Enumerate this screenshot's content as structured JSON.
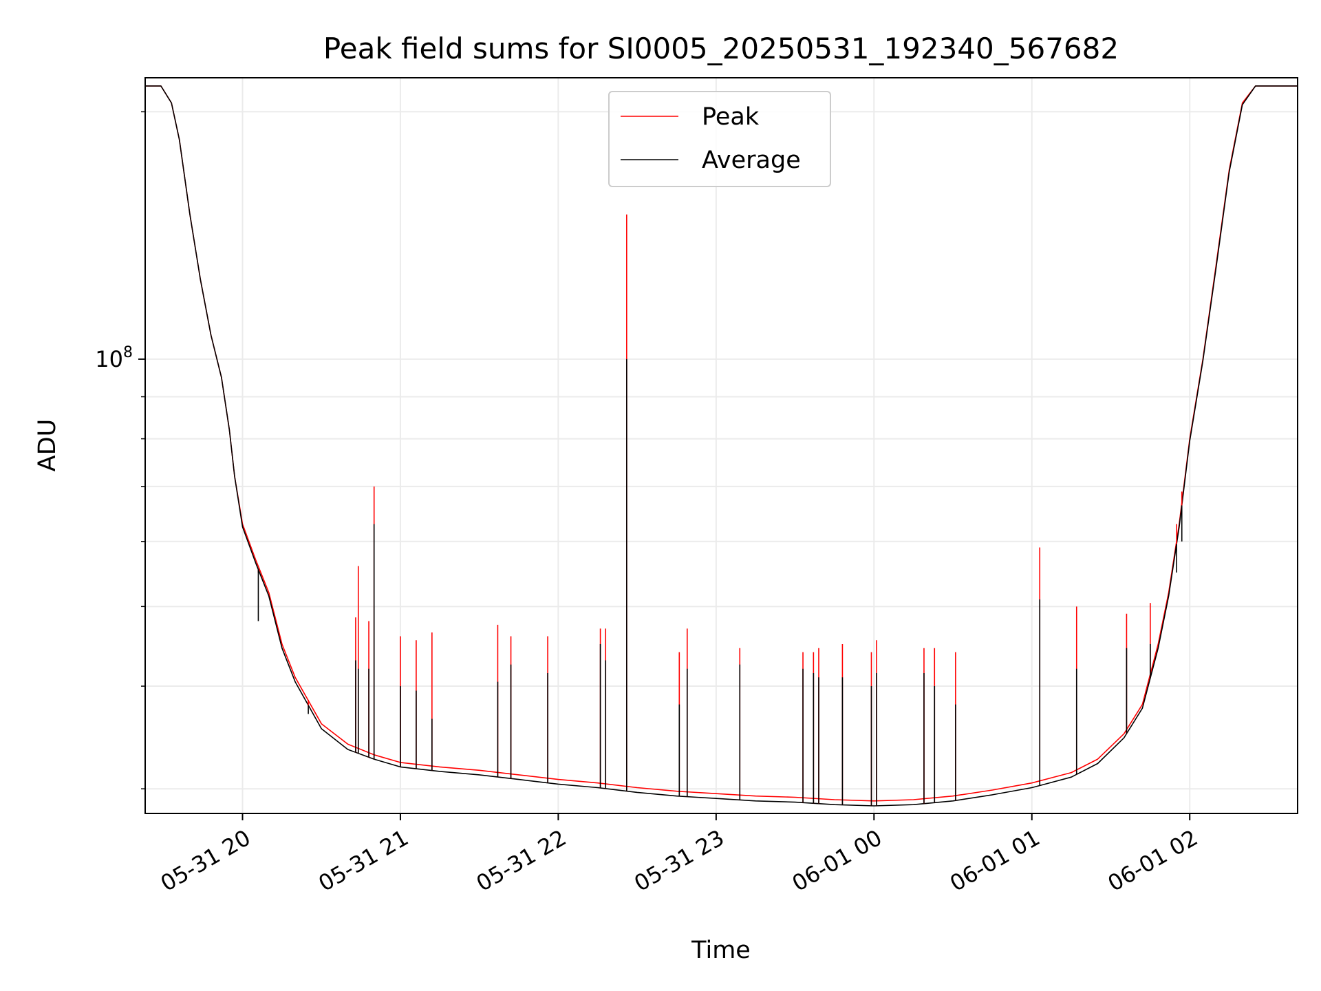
{
  "chart_data": {
    "type": "line",
    "title": "Peak field sums for SI0005_20250531_192340_567682",
    "xlabel": "Time",
    "ylabel": "ADU",
    "yscale": "log",
    "grid": true,
    "legend": {
      "placement": "upper center"
    },
    "x_tick_labels": [
      "05-31 20",
      "05-31 21",
      "05-31 22",
      "05-31 23",
      "06-01 00",
      "06-01 01",
      "06-01 02"
    ],
    "x_tick_times": [
      "2025-05-31T20:00",
      "2025-05-31T21:00",
      "2025-05-31T22:00",
      "2025-05-31T23:00",
      "2025-06-01T00:00",
      "2025-06-01T01:00",
      "2025-06-01T02:00"
    ],
    "xlim": [
      "2025-05-31T19:23",
      "2025-06-01T02:41"
    ],
    "y_major_ticks": [
      {
        "value": 100000000,
        "base": "10",
        "exp": "8"
      }
    ],
    "ylim": [
      28000000,
      220000000
    ],
    "series": [
      {
        "name": "Peak",
        "color": "#ff0000",
        "points": [
          [
            "2025-05-31T19:23",
            215000000
          ],
          [
            "2025-05-31T19:29",
            215000000
          ],
          [
            "2025-05-31T19:33",
            205000000
          ],
          [
            "2025-05-31T19:36",
            185000000
          ],
          [
            "2025-05-31T19:40",
            150000000
          ],
          [
            "2025-05-31T19:44",
            125000000
          ],
          [
            "2025-05-31T19:48",
            107000000
          ],
          [
            "2025-05-31T19:52",
            95000000
          ],
          [
            "2025-05-31T19:55",
            82000000
          ],
          [
            "2025-05-31T19:57",
            72000000
          ],
          [
            "2025-05-31T20:00",
            63000000
          ],
          [
            "2025-05-31T20:05",
            57000000
          ],
          [
            "2025-05-31T20:10",
            52000000
          ],
          [
            "2025-05-31T20:15",
            45000000
          ],
          [
            "2025-05-31T20:20",
            41000000
          ],
          [
            "2025-05-31T20:30",
            36000000
          ],
          [
            "2025-05-31T20:40",
            34000000
          ],
          [
            "2025-05-31T20:50",
            33000000
          ],
          [
            "2025-05-31T21:00",
            32300000
          ],
          [
            "2025-05-31T21:15",
            31900000
          ],
          [
            "2025-05-31T21:30",
            31600000
          ],
          [
            "2025-05-31T21:45",
            31200000
          ],
          [
            "2025-05-31T22:00",
            30800000
          ],
          [
            "2025-05-31T22:15",
            30500000
          ],
          [
            "2025-05-31T22:30",
            30100000
          ],
          [
            "2025-05-31T22:45",
            29800000
          ],
          [
            "2025-05-31T23:00",
            29600000
          ],
          [
            "2025-05-31T23:15",
            29400000
          ],
          [
            "2025-05-31T23:30",
            29300000
          ],
          [
            "2025-05-31T23:45",
            29100000
          ],
          [
            "2025-06-01T00:00",
            29000000
          ],
          [
            "2025-06-01T00:15",
            29100000
          ],
          [
            "2025-06-01T00:30",
            29400000
          ],
          [
            "2025-06-01T00:45",
            29900000
          ],
          [
            "2025-06-01T01:00",
            30500000
          ],
          [
            "2025-06-01T01:15",
            31400000
          ],
          [
            "2025-06-01T01:25",
            32600000
          ],
          [
            "2025-06-01T01:35",
            35000000
          ],
          [
            "2025-06-01T01:42",
            38000000
          ],
          [
            "2025-06-01T01:48",
            45000000
          ],
          [
            "2025-06-01T01:52",
            52000000
          ],
          [
            "2025-06-01T01:56",
            63000000
          ],
          [
            "2025-06-01T02:00",
            80000000
          ],
          [
            "2025-06-01T02:05",
            100000000
          ],
          [
            "2025-06-01T02:10",
            130000000
          ],
          [
            "2025-06-01T02:15",
            170000000
          ],
          [
            "2025-06-01T02:20",
            205000000
          ],
          [
            "2025-06-01T02:25",
            215000000
          ],
          [
            "2025-06-01T02:41",
            215000000
          ]
        ]
      },
      {
        "name": "Average",
        "color": "#000000",
        "points": [
          [
            "2025-05-31T19:23",
            215000000
          ],
          [
            "2025-05-31T19:29",
            215000000
          ],
          [
            "2025-05-31T19:33",
            205000000
          ],
          [
            "2025-05-31T19:36",
            185000000
          ],
          [
            "2025-05-31T19:40",
            150000000
          ],
          [
            "2025-05-31T19:44",
            125000000
          ],
          [
            "2025-05-31T19:48",
            107000000
          ],
          [
            "2025-05-31T19:52",
            95000000
          ],
          [
            "2025-05-31T19:55",
            82000000
          ],
          [
            "2025-05-31T19:57",
            72000000
          ],
          [
            "2025-05-31T20:00",
            62500000
          ],
          [
            "2025-05-31T20:05",
            56500000
          ],
          [
            "2025-05-31T20:10",
            51500000
          ],
          [
            "2025-05-31T20:15",
            44500000
          ],
          [
            "2025-05-31T20:20",
            40500000
          ],
          [
            "2025-05-31T20:30",
            35500000
          ],
          [
            "2025-05-31T20:40",
            33500000
          ],
          [
            "2025-05-31T20:50",
            32600000
          ],
          [
            "2025-05-31T21:00",
            31900000
          ],
          [
            "2025-05-31T21:15",
            31500000
          ],
          [
            "2025-05-31T21:30",
            31200000
          ],
          [
            "2025-05-31T21:45",
            30800000
          ],
          [
            "2025-05-31T22:00",
            30400000
          ],
          [
            "2025-05-31T22:15",
            30100000
          ],
          [
            "2025-05-31T22:30",
            29700000
          ],
          [
            "2025-05-31T22:45",
            29400000
          ],
          [
            "2025-05-31T23:00",
            29200000
          ],
          [
            "2025-05-31T23:15",
            29000000
          ],
          [
            "2025-05-31T23:30",
            28900000
          ],
          [
            "2025-05-31T23:45",
            28700000
          ],
          [
            "2025-06-01T00:00",
            28600000
          ],
          [
            "2025-06-01T00:15",
            28700000
          ],
          [
            "2025-06-01T00:30",
            29000000
          ],
          [
            "2025-06-01T00:45",
            29500000
          ],
          [
            "2025-06-01T01:00",
            30100000
          ],
          [
            "2025-06-01T01:15",
            31000000
          ],
          [
            "2025-06-01T01:25",
            32200000
          ],
          [
            "2025-06-01T01:35",
            34600000
          ],
          [
            "2025-06-01T01:42",
            37600000
          ],
          [
            "2025-06-01T01:48",
            44500000
          ],
          [
            "2025-06-01T01:52",
            51500000
          ],
          [
            "2025-06-01T01:56",
            62500000
          ],
          [
            "2025-06-01T02:00",
            79500000
          ],
          [
            "2025-06-01T02:05",
            99500000
          ],
          [
            "2025-06-01T02:10",
            129000000
          ],
          [
            "2025-06-01T02:15",
            169000000
          ],
          [
            "2025-06-01T02:20",
            204000000
          ],
          [
            "2025-06-01T02:25",
            215000000
          ],
          [
            "2025-06-01T02:41",
            215000000
          ]
        ]
      }
    ],
    "spikes": [
      {
        "time": "2025-05-31T20:06",
        "peak": 55000000,
        "average": 48000000
      },
      {
        "time": "2025-05-31T20:25",
        "peak": 38500000,
        "average": 37000000
      },
      {
        "time": "2025-05-31T20:43",
        "peak": 48500000,
        "average": 43000000
      },
      {
        "time": "2025-05-31T20:44",
        "peak": 56000000,
        "average": 42000000
      },
      {
        "time": "2025-05-31T20:48",
        "peak": 48000000,
        "average": 42000000
      },
      {
        "time": "2025-05-31T20:50",
        "peak": 70000000,
        "average": 63000000
      },
      {
        "time": "2025-05-31T21:00",
        "peak": 46000000,
        "average": 40000000
      },
      {
        "time": "2025-05-31T21:06",
        "peak": 45500000,
        "average": 39500000
      },
      {
        "time": "2025-05-31T21:12",
        "peak": 46500000,
        "average": 36500000
      },
      {
        "time": "2025-05-31T21:37",
        "peak": 47500000,
        "average": 40500000
      },
      {
        "time": "2025-05-31T21:42",
        "peak": 46000000,
        "average": 42500000
      },
      {
        "time": "2025-05-31T21:56",
        "peak": 46000000,
        "average": 41500000
      },
      {
        "time": "2025-05-31T22:16",
        "peak": 47000000,
        "average": 45000000
      },
      {
        "time": "2025-05-31T22:18",
        "peak": 47000000,
        "average": 43000000
      },
      {
        "time": "2025-05-31T22:26",
        "peak": 150000000,
        "average": 100000000
      },
      {
        "time": "2025-05-31T22:46",
        "peak": 44000000,
        "average": 38000000
      },
      {
        "time": "2025-05-31T22:49",
        "peak": 47000000,
        "average": 42000000
      },
      {
        "time": "2025-05-31T23:09",
        "peak": 44500000,
        "average": 42500000
      },
      {
        "time": "2025-05-31T23:33",
        "peak": 44000000,
        "average": 42000000
      },
      {
        "time": "2025-05-31T23:37",
        "peak": 44000000,
        "average": 41500000
      },
      {
        "time": "2025-05-31T23:39",
        "peak": 44500000,
        "average": 41000000
      },
      {
        "time": "2025-05-31T23:48",
        "peak": 45000000,
        "average": 41000000
      },
      {
        "time": "2025-05-31T23:59",
        "peak": 44000000,
        "average": 40000000
      },
      {
        "time": "2025-06-01T00:01",
        "peak": 45500000,
        "average": 41500000
      },
      {
        "time": "2025-06-01T00:19",
        "peak": 44500000,
        "average": 41500000
      },
      {
        "time": "2025-06-01T00:23",
        "peak": 44500000,
        "average": 40000000
      },
      {
        "time": "2025-06-01T00:31",
        "peak": 44000000,
        "average": 38000000
      },
      {
        "time": "2025-06-01T01:03",
        "peak": 59000000,
        "average": 51000000
      },
      {
        "time": "2025-06-01T01:17",
        "peak": 50000000,
        "average": 42000000
      },
      {
        "time": "2025-06-01T01:36",
        "peak": 49000000,
        "average": 44500000
      },
      {
        "time": "2025-06-01T01:45",
        "peak": 50500000,
        "average": 45000000
      },
      {
        "time": "2025-06-01T01:55",
        "peak": 63000000,
        "average": 55000000
      },
      {
        "time": "2025-06-01T01:57",
        "peak": 69000000,
        "average": 60000000
      }
    ]
  }
}
